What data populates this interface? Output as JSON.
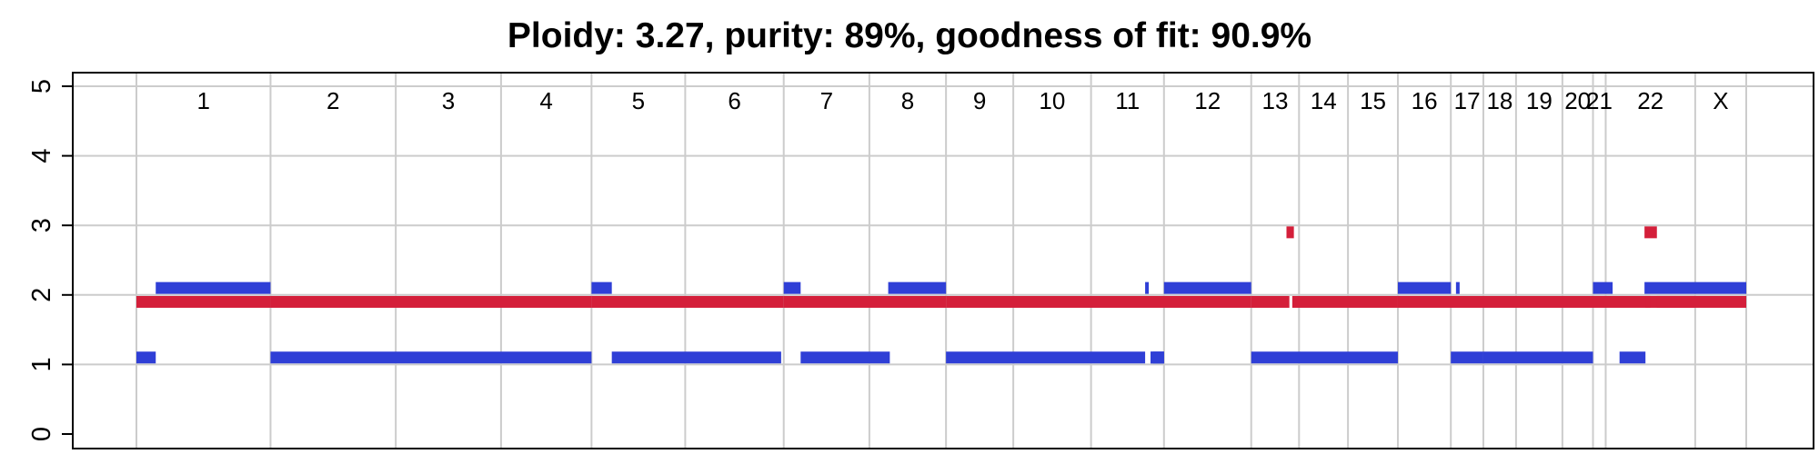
{
  "chart_data": {
    "type": "segments",
    "title": "Ploidy: 3.27, purity: 89%, goodness of fit: 90.9%",
    "ylim": [
      0,
      5
    ],
    "yticks": [
      "0",
      "1",
      "2",
      "3",
      "4",
      "5"
    ],
    "grid": true,
    "colors": {
      "major": "#2f3fd6",
      "minor": "#d41f3a",
      "grid": "#cccccc",
      "axis": "#000000"
    },
    "chromosomes": [
      {
        "name": "1",
        "start": 0,
        "end": 0.0833
      },
      {
        "name": "2",
        "start": 0.0833,
        "end": 0.1611
      },
      {
        "name": "3",
        "start": 0.1611,
        "end": 0.2265
      },
      {
        "name": "4",
        "start": 0.2265,
        "end": 0.2827
      },
      {
        "name": "5",
        "start": 0.2827,
        "end": 0.3409
      },
      {
        "name": "6",
        "start": 0.3409,
        "end": 0.4021
      },
      {
        "name": "7",
        "start": 0.4021,
        "end": 0.4553
      },
      {
        "name": "8",
        "start": 0.4553,
        "end": 0.5029
      },
      {
        "name": "9",
        "start": 0.5029,
        "end": 0.5447
      },
      {
        "name": "10",
        "start": 0.5447,
        "end": 0.593
      },
      {
        "name": "11",
        "start": 0.593,
        "end": 0.6383
      },
      {
        "name": "12",
        "start": 0.6383,
        "end": 0.6925
      },
      {
        "name": "13",
        "start": 0.6925,
        "end": 0.7222
      },
      {
        "name": "14",
        "start": 0.7222,
        "end": 0.7526
      },
      {
        "name": "15",
        "start": 0.7526,
        "end": 0.7836
      },
      {
        "name": "16",
        "start": 0.7836,
        "end": 0.8165
      },
      {
        "name": "17",
        "start": 0.8165,
        "end": 0.8367
      },
      {
        "name": "18",
        "start": 0.8367,
        "end": 0.857
      },
      {
        "name": "19",
        "start": 0.857,
        "end": 0.8858
      },
      {
        "name": "20",
        "start": 0.8858,
        "end": 0.9048
      },
      {
        "name": "21",
        "start": 0.9048,
        "end": 0.9127
      },
      {
        "name": "22",
        "start": 0.9127,
        "end": 0.9683
      },
      {
        "name": "X",
        "start": 0.9683,
        "end": 1.0
      }
    ],
    "segments": [
      {
        "series": "major",
        "start": 0.012,
        "end": 0.0833,
        "value": 2.1
      },
      {
        "series": "minor",
        "start": 0.0,
        "end": 0.0833,
        "value": 1.9
      },
      {
        "series": "major",
        "start": 0.0,
        "end": 0.012,
        "value": 1.1
      },
      {
        "series": "minor",
        "start": 0.0833,
        "end": 0.2827,
        "value": 1.9
      },
      {
        "series": "major",
        "start": 0.0833,
        "end": 0.2827,
        "value": 1.1
      },
      {
        "series": "major",
        "start": 0.2827,
        "end": 0.2953,
        "value": 2.1
      },
      {
        "series": "minor",
        "start": 0.2827,
        "end": 0.4021,
        "value": 1.9
      },
      {
        "series": "major",
        "start": 0.2953,
        "end": 0.4005,
        "value": 1.1
      },
      {
        "series": "major",
        "start": 0.4021,
        "end": 0.4126,
        "value": 2.1
      },
      {
        "series": "minor",
        "start": 0.4021,
        "end": 0.5029,
        "value": 1.9
      },
      {
        "series": "major",
        "start": 0.4126,
        "end": 0.468,
        "value": 1.1
      },
      {
        "series": "major",
        "start": 0.467,
        "end": 0.5029,
        "value": 2.1
      },
      {
        "series": "minor",
        "start": 0.5029,
        "end": 0.6925,
        "value": 1.9
      },
      {
        "series": "major",
        "start": 0.5029,
        "end": 0.6266,
        "value": 1.1
      },
      {
        "series": "major",
        "start": 0.6266,
        "end": 0.6285,
        "value": 2.1
      },
      {
        "series": "major",
        "start": 0.63,
        "end": 0.6383,
        "value": 1.1
      },
      {
        "series": "major",
        "start": 0.63,
        "end": 0.6383,
        "value": 1.1
      },
      {
        "series": "major",
        "start": 0.6315,
        "end": 0.6383,
        "value": 1.1
      },
      {
        "series": "major",
        "start": 0.6383,
        "end": 0.6925,
        "value": 2.1
      },
      {
        "series": "minor",
        "start": 0.6925,
        "end": 0.7162,
        "value": 1.9
      },
      {
        "series": "minor",
        "start": 0.718,
        "end": 0.7836,
        "value": 1.9
      },
      {
        "series": "minor",
        "start": 0.7144,
        "end": 0.719,
        "value": 2.9
      },
      {
        "series": "major",
        "start": 0.6925,
        "end": 0.7836,
        "value": 1.1
      },
      {
        "series": "major",
        "start": 0.7836,
        "end": 0.8165,
        "value": 2.1
      },
      {
        "series": "minor",
        "start": 0.7836,
        "end": 0.9683,
        "value": 1.9
      },
      {
        "series": "major",
        "start": 0.8165,
        "end": 0.8367,
        "value": 1.1
      },
      {
        "series": "major",
        "start": 0.8197,
        "end": 0.8216,
        "value": 2.1
      },
      {
        "series": "major",
        "start": 0.8367,
        "end": 0.9048,
        "value": 1.1
      },
      {
        "series": "major",
        "start": 0.9048,
        "end": 0.917,
        "value": 2.1
      },
      {
        "series": "major",
        "start": 0.9213,
        "end": 0.9374,
        "value": 1.1
      },
      {
        "series": "minor",
        "start": 0.9374,
        "end": 0.9405,
        "value": 1.9
      },
      {
        "series": "minor",
        "start": 0.9368,
        "end": 0.9445,
        "value": 2.9
      },
      {
        "series": "major",
        "start": 0.9368,
        "end": 1.0,
        "value": 2.1
      },
      {
        "series": "minor",
        "start": 0.9445,
        "end": 1.0,
        "value": 1.9
      }
    ]
  }
}
